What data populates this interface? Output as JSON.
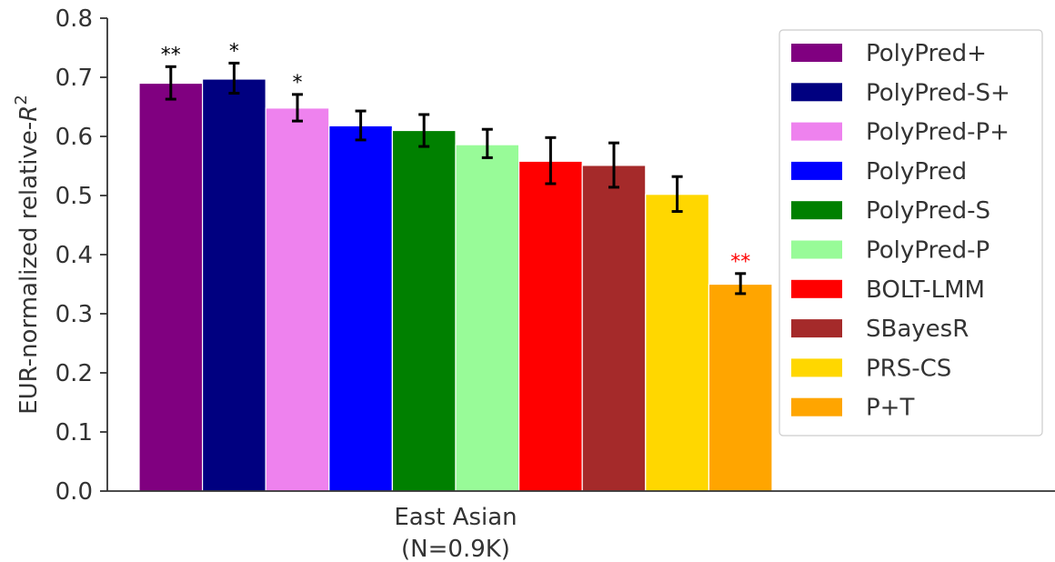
{
  "chart_data": {
    "type": "bar",
    "ylabel_prefix": "EUR-normalized relative-",
    "ylabel_var": "R",
    "ylabel_exp": "2",
    "ylim": [
      0,
      0.8
    ],
    "yticks": [
      "0.0",
      "0.1",
      "0.2",
      "0.3",
      "0.4",
      "0.5",
      "0.6",
      "0.7",
      "0.8"
    ],
    "categories": [
      "East Asian",
      "(N=0.9K)"
    ],
    "legend_position": "right",
    "grid": false,
    "series": [
      {
        "name": "PolyPred+",
        "value": 0.69,
        "err_low": 0.663,
        "err_high": 0.718,
        "color": "#800080",
        "star": "**",
        "star_color": "#000000"
      },
      {
        "name": "PolyPred-S+",
        "value": 0.697,
        "err_low": 0.673,
        "err_high": 0.724,
        "color": "#000080",
        "star": "*",
        "star_color": "#000000"
      },
      {
        "name": "PolyPred-P+",
        "value": 0.648,
        "err_low": 0.626,
        "err_high": 0.671,
        "color": "#EE82EE",
        "star": "*",
        "star_color": "#000000"
      },
      {
        "name": "PolyPred",
        "value": 0.618,
        "err_low": 0.594,
        "err_high": 0.643,
        "color": "#0000FF",
        "star": "",
        "star_color": "#000000"
      },
      {
        "name": "PolyPred-S",
        "value": 0.61,
        "err_low": 0.583,
        "err_high": 0.637,
        "color": "#008000",
        "star": "",
        "star_color": "#000000"
      },
      {
        "name": "PolyPred-P",
        "value": 0.586,
        "err_low": 0.564,
        "err_high": 0.612,
        "color": "#98FB98",
        "star": "",
        "star_color": "#000000"
      },
      {
        "name": "BOLT-LMM",
        "value": 0.558,
        "err_low": 0.52,
        "err_high": 0.598,
        "color": "#FF0000",
        "star": "",
        "star_color": "#000000"
      },
      {
        "name": "SBayesR",
        "value": 0.551,
        "err_low": 0.514,
        "err_high": 0.589,
        "color": "#A52A2A",
        "star": "",
        "star_color": "#000000"
      },
      {
        "name": "PRS-CS",
        "value": 0.502,
        "err_low": 0.473,
        "err_high": 0.532,
        "color": "#FFD700",
        "star": "",
        "star_color": "#000000"
      },
      {
        "name": "P+T",
        "value": 0.35,
        "err_low": 0.334,
        "err_high": 0.368,
        "color": "#FFA500",
        "star": "**",
        "star_color": "#FF0000"
      }
    ]
  }
}
